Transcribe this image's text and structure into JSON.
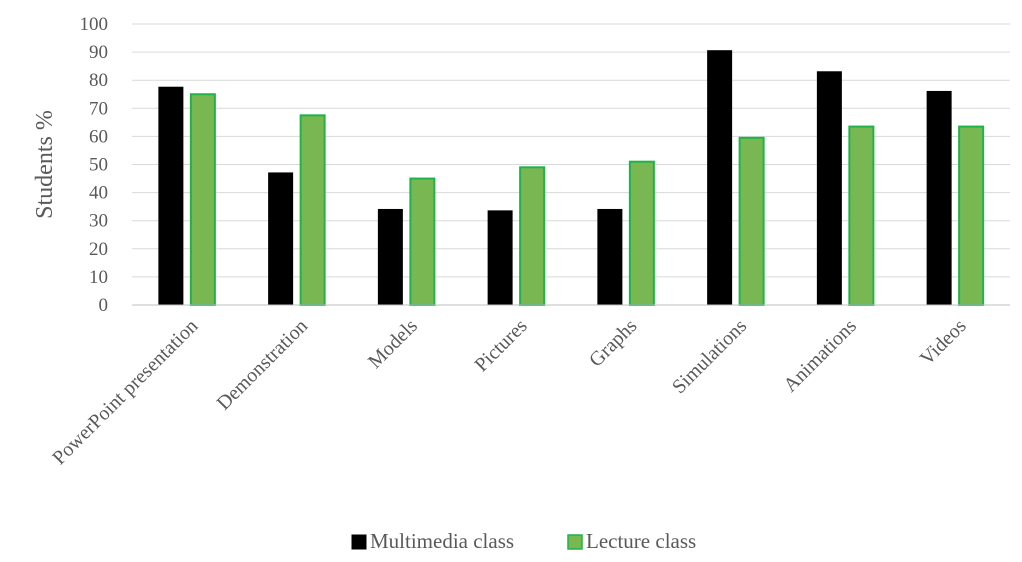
{
  "chart_data": {
    "type": "bar",
    "categories": [
      "PowerPoint presentation",
      "Demonstration",
      "Models",
      "Pictures",
      "Graphs",
      "Simulations",
      "Animations",
      "Videos"
    ],
    "series": [
      {
        "name": "Multimedia class",
        "values": [
          77.5,
          47,
          34,
          33.5,
          34,
          90.5,
          83,
          76
        ],
        "color": "#000000",
        "stroke": "#000000"
      },
      {
        "name": "Lecture class",
        "values": [
          75,
          67.5,
          45,
          49,
          51,
          59.5,
          63.5,
          63.5
        ],
        "color": "#79b753",
        "stroke": "#1fb34a"
      }
    ],
    "title": "",
    "xlabel": "",
    "ylabel": "Students %",
    "ylim": [
      0,
      100
    ],
    "yticks": [
      0,
      10,
      20,
      30,
      40,
      50,
      60,
      70,
      80,
      90,
      100
    ],
    "grid": true,
    "legend_position": "bottom"
  }
}
